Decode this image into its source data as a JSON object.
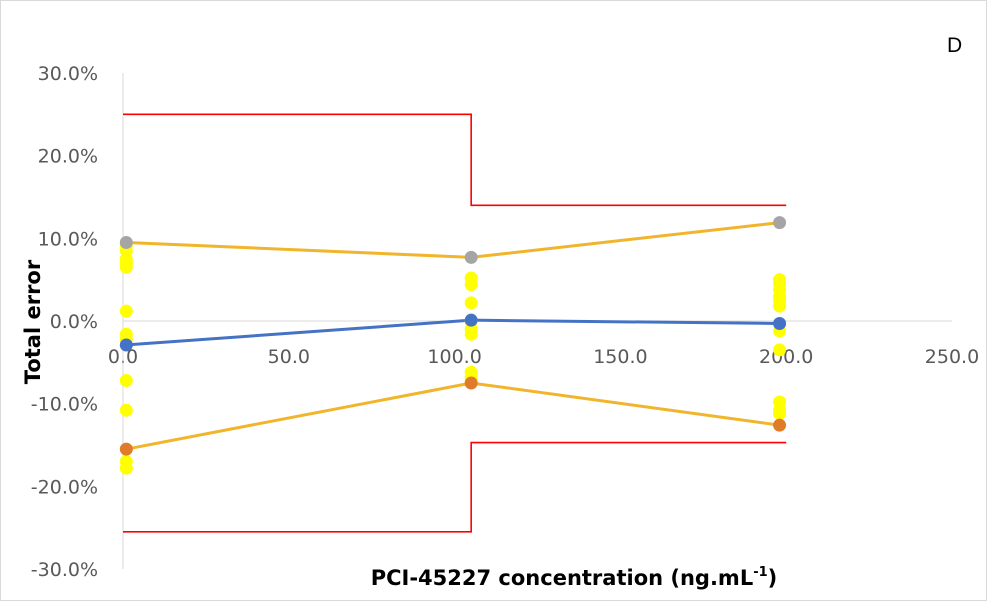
{
  "chart_data": {
    "type": "scatter",
    "panel_label": "D",
    "xlabel": "PCI-45227 concentration (ng.mL",
    "xlabel_sup": "-1",
    "xlabel_close": ")",
    "ylabel": "Total error",
    "xlim": [
      0,
      250
    ],
    "ylim": [
      -0.3,
      0.3
    ],
    "x_ticks": [
      0,
      50,
      100,
      150,
      200,
      250
    ],
    "x_tick_labels": [
      "0.0",
      "50.0",
      "100.0",
      "150.0",
      "200.0",
      "250.0"
    ],
    "y_ticks": [
      0.3,
      0.2,
      0.1,
      0.0,
      -0.1,
      -0.2,
      -0.3
    ],
    "y_tick_labels": [
      "30.0%",
      "20.0%",
      "10.0%",
      "0.0%",
      "-10.0%",
      "-20.0%",
      "-30.0%"
    ],
    "grid": false,
    "series": [
      {
        "role": "relative-bias",
        "color": "#4472C4",
        "marker_color": "#4472C4",
        "x": [
          1,
          105,
          198
        ],
        "y": [
          -0.029,
          0.001,
          -0.003
        ]
      },
      {
        "role": "upper-tolerance",
        "color": "#F0B52B",
        "marker_color": "#A5A5A5",
        "x": [
          1,
          105,
          198
        ],
        "y": [
          0.095,
          0.077,
          0.119
        ]
      },
      {
        "role": "lower-tolerance",
        "color": "#F0B52B",
        "marker_color": "#E07B2A",
        "x": [
          1,
          105,
          198
        ],
        "y": [
          -0.155,
          -0.075,
          -0.126
        ]
      },
      {
        "role": "upper-acceptance-limit",
        "color": "#FF0000",
        "style": "step",
        "x": [
          0,
          105,
          105,
          200
        ],
        "y": [
          0.25,
          0.25,
          0.14,
          0.14
        ]
      },
      {
        "role": "lower-acceptance-limit",
        "color": "#FF0000",
        "style": "step",
        "x": [
          0,
          105,
          105,
          200
        ],
        "y": [
          -0.255,
          -0.255,
          -0.147,
          -0.147
        ]
      },
      {
        "role": "individual-results",
        "color": "#FFFF00",
        "style": "points",
        "x": [
          1,
          1,
          1,
          1,
          1,
          1,
          1,
          1,
          1,
          1,
          1,
          1,
          105,
          105,
          105,
          105,
          105,
          105,
          105,
          105,
          105,
          198,
          198,
          198,
          198,
          198,
          198,
          198,
          198,
          198,
          198,
          198
        ],
        "y": [
          0.085,
          0.075,
          0.065,
          0.012,
          -0.016,
          -0.022,
          -0.072,
          -0.108,
          -0.17,
          -0.178,
          0.092,
          0.07,
          0.052,
          0.044,
          0.022,
          -0.01,
          -0.016,
          -0.062,
          -0.068,
          -0.072,
          0.0,
          0.05,
          0.045,
          0.038,
          0.03,
          0.018,
          -0.012,
          -0.035,
          -0.098,
          -0.108,
          -0.112,
          0.025
        ]
      }
    ]
  }
}
